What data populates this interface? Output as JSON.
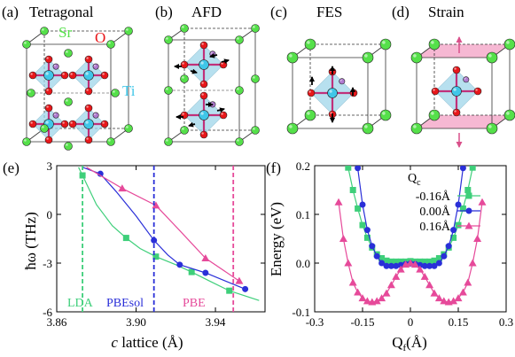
{
  "panels": {
    "a": {
      "tag": "(a)",
      "title": "Tetragonal",
      "atom_labels": {
        "sr": "Sr",
        "o": "O",
        "ti": "Ti"
      }
    },
    "b": {
      "tag": "(b)",
      "title": "AFD"
    },
    "c": {
      "tag": "(c)",
      "title": "FES"
    },
    "d": {
      "tag": "(d)",
      "title": "Strain"
    },
    "e": {
      "tag": "(e)"
    },
    "f": {
      "tag": "(f)"
    }
  },
  "colors": {
    "sr": "#55e04a",
    "o": "#e8171a",
    "ti": "#3fc6e8",
    "octa": "#9fd6ea",
    "bond": "#c0307a",
    "pink_plane": "#f4a6c8",
    "arrow": "#000000",
    "strain_arrow": "#d9508a",
    "lda": "#3ecf7a",
    "pbesol": "#2a2fd8",
    "pbe": "#e64a9a",
    "ti_label": "#3fc6e8"
  },
  "chart_data": [
    {
      "type": "line",
      "panel": "e",
      "xlabel_italic": "c",
      "xlabel_rest": " lattice (Å)",
      "ylabel": "ħω (THz)",
      "xlim": [
        3.86,
        3.965
      ],
      "ylim": [
        -6,
        3
      ],
      "xticks": [
        3.86,
        3.9,
        3.94
      ],
      "xtick_labels": [
        "3.86",
        "3.90",
        "3.94"
      ],
      "yticks": [
        3,
        0,
        -3,
        -6
      ],
      "ytick_labels": [
        "3",
        "0",
        "-3",
        "-6"
      ],
      "series": [
        {
          "color": "lda",
          "marker": "square",
          "x": [
            3.873,
            3.895,
            3.91,
            3.928,
            3.947
          ],
          "y": [
            2.4,
            -1.45,
            -2.6,
            -3.55,
            -4.7
          ],
          "curve_x": [
            3.871,
            3.873,
            3.88,
            3.888,
            3.895,
            3.902,
            3.91,
            3.92,
            3.928,
            3.937,
            3.947,
            3.962
          ],
          "curve_y": [
            2.9,
            2.4,
            0.6,
            -0.7,
            -1.45,
            -2.1,
            -2.6,
            -3.1,
            -3.55,
            -4.1,
            -4.7,
            -5.3
          ]
        },
        {
          "color": "pbesol",
          "marker": "circle",
          "x": [
            3.882,
            3.909,
            3.922,
            3.935,
            3.955
          ],
          "y": [
            2.5,
            -1.6,
            -3.1,
            -3.6,
            -4.6
          ],
          "curve_x": [
            3.873,
            3.882,
            3.89,
            3.9,
            3.909,
            3.916,
            3.922,
            3.935,
            3.945,
            3.955
          ],
          "curve_y": [
            2.9,
            2.5,
            1.4,
            -0.1,
            -1.6,
            -2.5,
            -3.1,
            -3.6,
            -4.1,
            -4.6
          ]
        },
        {
          "color": "pbe",
          "marker": "triangle",
          "x": [
            3.893,
            3.91,
            3.935,
            3.952
          ],
          "y": [
            1.6,
            0.55,
            -2.7,
            -4.1
          ],
          "curve_x": [
            3.875,
            3.893,
            3.91,
            3.922,
            3.935,
            3.952
          ],
          "curve_y": [
            2.9,
            1.6,
            0.55,
            -1.0,
            -2.7,
            -4.1
          ]
        }
      ],
      "vlines": [
        {
          "x": 3.873,
          "label": "LDA",
          "color": "lda"
        },
        {
          "x": 3.909,
          "label": "PBEsol",
          "color": "pbesol"
        },
        {
          "x": 3.949,
          "label": "PBE",
          "color": "pbe"
        }
      ]
    },
    {
      "type": "line",
      "panel": "f",
      "xlabel_main": "Q",
      "xlabel_sub": "f",
      "xlabel_rest": "(Å)",
      "ylabel": "Energy (eV)",
      "xlim": [
        -0.3,
        0.3
      ],
      "ylim": [
        -0.1,
        0.2
      ],
      "xticks": [
        -0.3,
        -0.15,
        0,
        0.15,
        0.3
      ],
      "xtick_labels": [
        "-0.3",
        "-0.15",
        "0",
        "0.15",
        "0.3"
      ],
      "yticks": [
        -0.1,
        0,
        0.1,
        0.2
      ],
      "ytick_labels": [
        "-0.1",
        "0.0",
        "0.1",
        "0.2"
      ],
      "legend_title_main": "Q",
      "legend_title_sub": "c",
      "legend_position": "top-right",
      "series": [
        {
          "name": "-0.16Å",
          "color": "lda",
          "marker": "square",
          "x": [
            -0.195,
            -0.18,
            -0.165,
            -0.15,
            -0.135,
            -0.12,
            -0.105,
            -0.09,
            -0.075,
            -0.06,
            -0.045,
            -0.03,
            -0.015,
            0,
            0.015,
            0.03,
            0.045,
            0.06,
            0.075,
            0.09,
            0.105,
            0.12,
            0.135,
            0.15,
            0.165,
            0.18,
            0.195
          ],
          "y": [
            0.196,
            0.15,
            0.112,
            0.078,
            0.052,
            0.032,
            0.018,
            0.01,
            0.005,
            0.003,
            0.003,
            0.003,
            0.003,
            0.004,
            0.003,
            0.003,
            0.003,
            0.003,
            0.005,
            0.01,
            0.018,
            0.032,
            0.052,
            0.078,
            0.112,
            0.15,
            0.196
          ]
        },
        {
          "name": "0.00Å",
          "color": "pbesol",
          "marker": "circle",
          "x": [
            -0.165,
            -0.15,
            -0.135,
            -0.12,
            -0.105,
            -0.09,
            -0.075,
            -0.06,
            -0.045,
            -0.03,
            -0.015,
            0,
            0.015,
            0.03,
            0.045,
            0.06,
            0.075,
            0.09,
            0.105,
            0.12,
            0.135,
            0.15,
            0.165
          ],
          "y": [
            0.195,
            0.12,
            0.068,
            0.035,
            0.014,
            0.0,
            -0.006,
            -0.006,
            -0.006,
            -0.004,
            -0.002,
            -0.001,
            -0.002,
            -0.004,
            -0.006,
            -0.006,
            -0.006,
            0.0,
            0.014,
            0.035,
            0.068,
            0.12,
            0.195
          ]
        },
        {
          "name": "0.16Å",
          "color": "pbe",
          "marker": "triangle",
          "x": [
            -0.225,
            -0.21,
            -0.195,
            -0.18,
            -0.165,
            -0.15,
            -0.135,
            -0.12,
            -0.105,
            -0.09,
            -0.075,
            -0.06,
            -0.045,
            -0.03,
            -0.015,
            0,
            0.015,
            0.03,
            0.045,
            0.06,
            0.075,
            0.09,
            0.105,
            0.12,
            0.135,
            0.15,
            0.165,
            0.18,
            0.195,
            0.21,
            0.225
          ],
          "y": [
            0.125,
            0.05,
            0.0,
            -0.04,
            -0.06,
            -0.072,
            -0.078,
            -0.08,
            -0.078,
            -0.072,
            -0.062,
            -0.045,
            -0.028,
            -0.013,
            -0.003,
            0.0,
            -0.003,
            -0.013,
            -0.028,
            -0.045,
            -0.062,
            -0.072,
            -0.078,
            -0.08,
            -0.078,
            -0.072,
            -0.06,
            -0.04,
            0.0,
            0.05,
            0.125
          ]
        }
      ]
    }
  ]
}
